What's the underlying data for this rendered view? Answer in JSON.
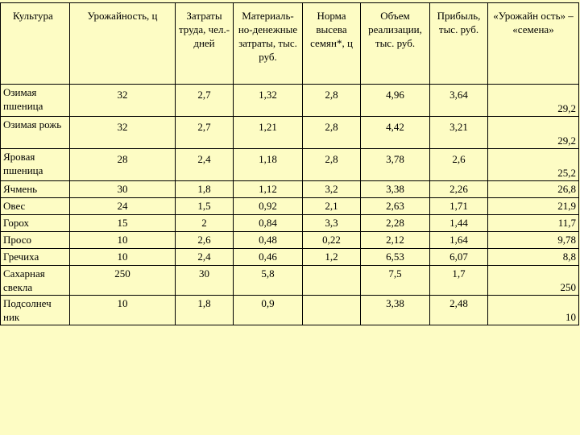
{
  "headers": [
    "Культура",
    "Урожайность, ц",
    "Затраты труда, чел.-дней",
    "Материаль-но-денежные затраты, тыс. руб.",
    "Норма высева семян*, ц",
    "Объем реализации, тыс. руб.",
    "Прибыль, тыс. руб.",
    "«Урожайн ость» – «семена»"
  ],
  "rows": [
    {
      "crop": "Озимая пшеница",
      "yield": "32",
      "labor": "2,7",
      "costs": "1,32",
      "seed_rate": "2,8",
      "sales": "4,96",
      "profit": "3,64",
      "net": "29,2"
    },
    {
      "crop": "Озимая рожь",
      "yield": "32",
      "labor": "2,7",
      "costs": "1,21",
      "seed_rate": "2,8",
      "sales": "4,42",
      "profit": "3,21",
      "net": "29,2"
    },
    {
      "crop": "Яровая пшеница",
      "yield": "28",
      "labor": "2,4",
      "costs": "1,18",
      "seed_rate": "2,8",
      "sales": "3,78",
      "profit": "2,6",
      "net": "25,2"
    },
    {
      "crop": "Ячмень",
      "yield": "30",
      "labor": "1,8",
      "costs": "1,12",
      "seed_rate": "3,2",
      "sales": "3,38",
      "profit": "2,26",
      "net": "26,8"
    },
    {
      "crop": "Овес",
      "yield": "24",
      "labor": "1,5",
      "costs": "0,92",
      "seed_rate": "2,1",
      "sales": "2,63",
      "profit": "1,71",
      "net": "21,9"
    },
    {
      "crop": "Горох",
      "yield": "15",
      "labor": "2",
      "costs": "0,84",
      "seed_rate": "3,3",
      "sales": "2,28",
      "profit": "1,44",
      "net": "11,7"
    },
    {
      "crop": "Просо",
      "yield": "10",
      "labor": "2,6",
      "costs": "0,48",
      "seed_rate": "0,22",
      "sales": "2,12",
      "profit": "1,64",
      "net": "9,78"
    },
    {
      "crop": "Гречиха",
      "yield": "10",
      "labor": "2,4",
      "costs": "0,46",
      "seed_rate": "1,2",
      "sales": "6,53",
      "profit": "6,07",
      "net": "8,8"
    },
    {
      "crop": "Сахарная свекла",
      "yield": "250",
      "labor": "30",
      "costs": "5,8",
      "seed_rate": "",
      "sales": "7,5",
      "profit": "1,7",
      "net": "250"
    },
    {
      "crop": "Подсолнеч ник",
      "yield": "10",
      "labor": "1,8",
      "costs": "0,9",
      "seed_rate": "",
      "sales": "3,38",
      "profit": "2,48",
      "net": "10"
    }
  ]
}
